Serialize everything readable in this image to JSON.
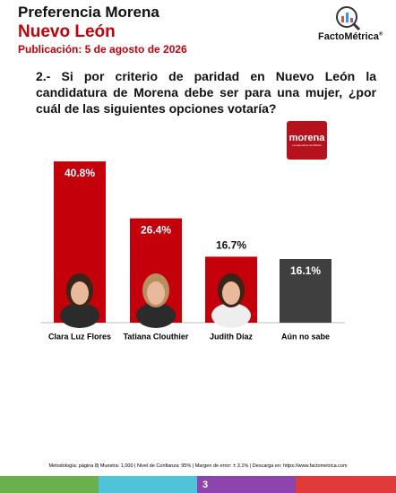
{
  "header": {
    "title": "Preferencia Morena",
    "state": "Nuevo León",
    "date": "Publicación: 5 de agosto de 2026",
    "brand": "FactoMétrica",
    "brand_mark": "®"
  },
  "question": "2.- Si por criterio de paridad en Nuevo León la candidatura de Morena debe ser para una mujer, ¿por cuál de las siguientes opciones votaría?",
  "party_logo": {
    "name": "morena",
    "slogan": "La esperanza de México"
  },
  "chart_data": {
    "type": "bar",
    "categories": [
      "Clara Luz Flores",
      "Tatiana Clouthier",
      "Judith Díaz",
      "Aún no sabe"
    ],
    "values": [
      40.8,
      26.4,
      16.7,
      16.1
    ],
    "value_labels": [
      "40.8%",
      "26.4%",
      "16.7%",
      "16.1%"
    ],
    "colors": [
      "#c4000b",
      "#c4000b",
      "#c4000b",
      "#3f3f3f"
    ]
  },
  "footer": "Metodología: página 8| Muestra: 1,000 | Nivel de Confianza: 95% | Margen de error: ± 3.1% | Descarga en: https://www.factometrica.com",
  "page_number": "3"
}
